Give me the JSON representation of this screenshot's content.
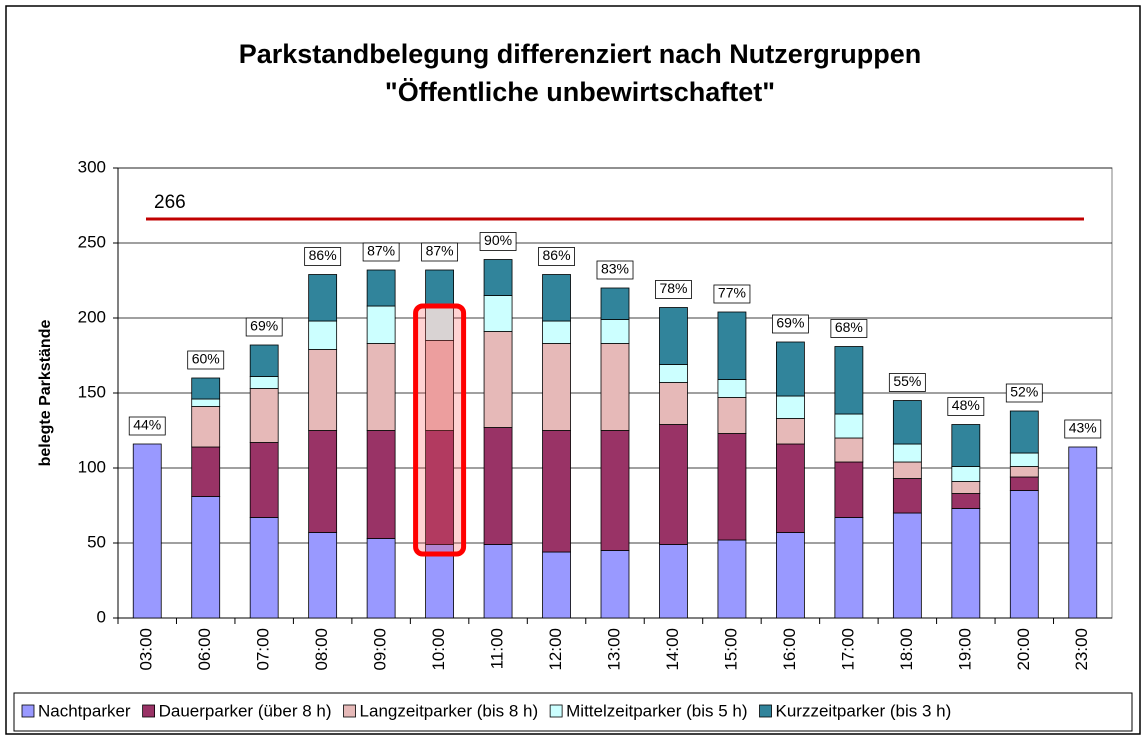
{
  "chart_data": {
    "type": "stacked_bar",
    "title": "Parkstandbelegung differenziert nach Nutzergruppen",
    "subtitle": "\"Öffentliche unbewirtschaftet\"",
    "y_label": "belegte Parkstände",
    "categories": [
      "03:00",
      "06:00",
      "07:00",
      "08:00",
      "09:00",
      "10:00",
      "11:00",
      "12:00",
      "13:00",
      "14:00",
      "15:00",
      "16:00",
      "17:00",
      "18:00",
      "19:00",
      "20:00",
      "23:00"
    ],
    "series": [
      {
        "name": "Nachtparker",
        "color": "#9999ff",
        "values": [
          116,
          81,
          67,
          57,
          53,
          49,
          49,
          44,
          45,
          49,
          52,
          57,
          67,
          70,
          73,
          85,
          114
        ]
      },
      {
        "name": "Dauerparker (über 8 h)",
        "color": "#993366",
        "values": [
          null,
          33,
          50,
          68,
          72,
          76,
          78,
          81,
          80,
          80,
          71,
          59,
          37,
          23,
          10,
          9,
          null
        ]
      },
      {
        "name": "Langzeitparker (bis 8 h)",
        "color": "#e6b9b8",
        "values": [
          null,
          27,
          36,
          54,
          58,
          60,
          64,
          58,
          58,
          28,
          24,
          17,
          16,
          11,
          8,
          7,
          null
        ]
      },
      {
        "name": "Mittelzeitparker (bis 5 h)",
        "color": "#ccffff",
        "values": [
          null,
          5,
          8,
          19,
          25,
          22,
          24,
          15,
          16,
          12,
          12,
          15,
          16,
          12,
          10,
          9,
          null
        ]
      },
      {
        "name": "Kurzzeitparker (bis 3 h)",
        "color": "#31849b",
        "values": [
          null,
          14,
          21,
          31,
          24,
          25,
          24,
          31,
          21,
          38,
          45,
          36,
          45,
          29,
          28,
          28,
          null
        ]
      }
    ],
    "occupancy_labels": [
      "44%",
      "60%",
      "69%",
      "86%",
      "87%",
      "87%",
      "90%",
      "86%",
      "83%",
      "78%",
      "77%",
      "69%",
      "68%",
      "55%",
      "48%",
      "52%",
      "43%"
    ],
    "reference_line": {
      "value": 266,
      "label": "266",
      "color": "#c00000"
    },
    "highlight_category": 5,
    "ylim": [
      0,
      300
    ],
    "yticks": [
      0,
      50,
      100,
      150,
      200,
      250,
      300
    ],
    "grid": true
  }
}
